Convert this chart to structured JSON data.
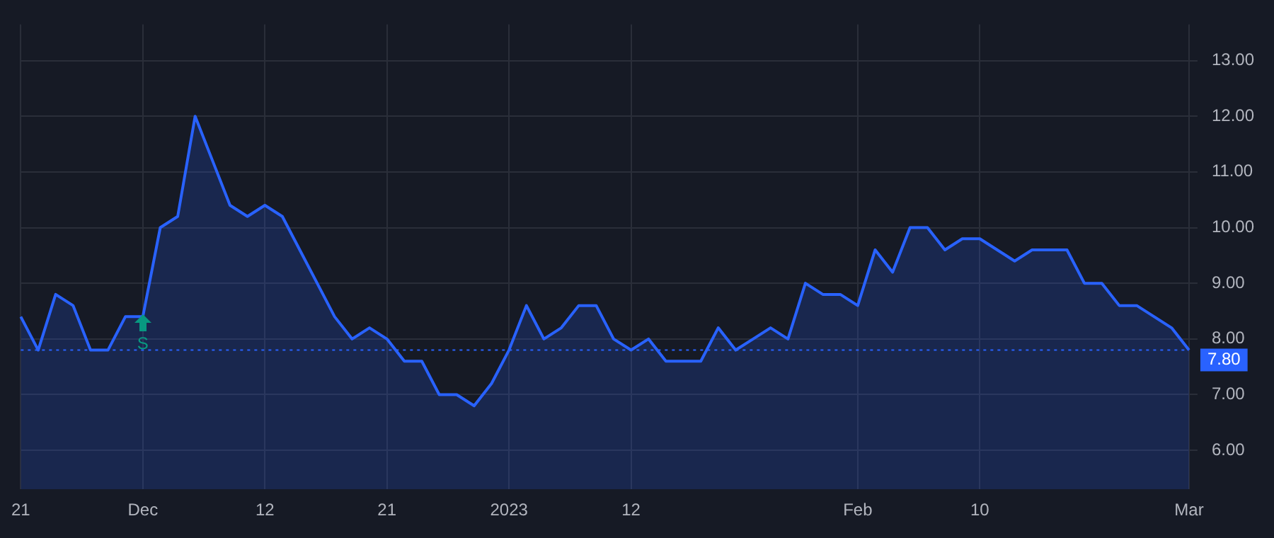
{
  "chart_data": {
    "type": "area",
    "categories": [
      "21",
      null,
      null,
      null,
      null,
      null,
      null,
      "Dec",
      null,
      null,
      null,
      null,
      null,
      null,
      "12",
      null,
      null,
      null,
      null,
      null,
      null,
      "21",
      null,
      null,
      null,
      null,
      null,
      null,
      "2023",
      null,
      null,
      null,
      null,
      null,
      null,
      "12",
      null,
      null,
      null,
      null,
      null,
      null,
      null,
      null,
      null,
      null,
      null,
      null,
      "Feb",
      null,
      null,
      null,
      null,
      null,
      null,
      "10",
      null,
      null,
      null,
      null,
      null,
      null,
      null,
      null,
      null,
      null,
      null,
      "Mar"
    ],
    "series": [
      {
        "color": "#2962ff",
        "values": [
          8.4,
          7.8,
          8.8,
          8.6,
          7.8,
          7.8,
          8.4,
          8.4,
          10.0,
          10.2,
          12.0,
          11.2,
          10.4,
          10.2,
          10.4,
          10.2,
          9.6,
          9.0,
          8.4,
          8.0,
          8.2,
          8.0,
          7.6,
          7.6,
          7.0,
          7.0,
          6.8,
          7.2,
          7.8,
          8.6,
          8.0,
          8.2,
          8.6,
          8.6,
          8.0,
          7.8,
          8.0,
          7.6,
          7.6,
          7.6,
          8.2,
          7.8,
          8.0,
          8.2,
          8.0,
          9.0,
          8.8,
          8.8,
          8.6,
          9.6,
          9.2,
          10.0,
          10.0,
          9.6,
          9.8,
          9.8,
          9.6,
          9.4,
          9.6,
          9.6,
          9.6,
          9.0,
          9.0,
          8.6,
          8.6,
          8.4,
          8.2,
          7.8
        ]
      }
    ],
    "ylim": [
      5.3,
      13.65
    ],
    "yticks": [
      {
        "value": 6,
        "label": "6.00"
      },
      {
        "value": 7,
        "label": "7.00"
      },
      {
        "value": 8,
        "label": "8.00"
      },
      {
        "value": 9,
        "label": "9.00"
      },
      {
        "value": 10,
        "label": "10.00"
      },
      {
        "value": 11,
        "label": "11.00"
      },
      {
        "value": 12,
        "label": "12.00"
      },
      {
        "value": 13,
        "label": "13.00"
      }
    ],
    "ref_lines": [
      {
        "axis": "y",
        "value": 7.8,
        "label": "7.80",
        "color": "#2962ff",
        "line_style": "dotted"
      }
    ],
    "annotations": [
      {
        "text": "S",
        "x": "Dec",
        "y": 7.9
      }
    ],
    "grid": true,
    "legend": false
  }
}
